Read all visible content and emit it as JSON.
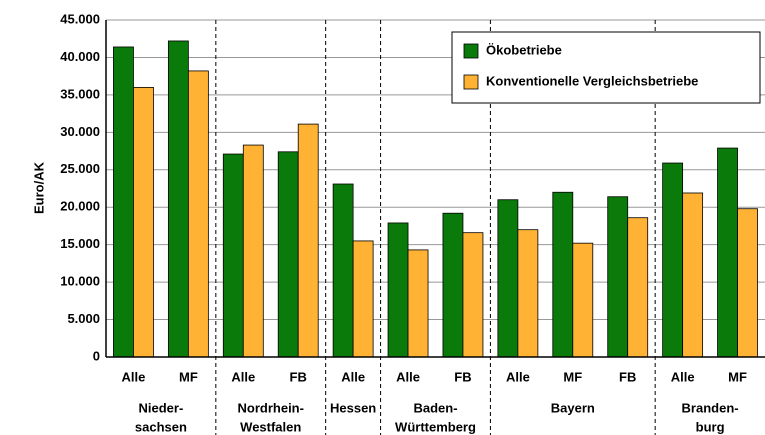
{
  "chart_data": {
    "type": "bar",
    "y_label": "Euro/AK",
    "categories": [
      "Alle",
      "MF",
      "Alle",
      "FB",
      "Alle",
      "Alle",
      "FB",
      "Alle",
      "MF",
      "FB",
      "Alle",
      "MF"
    ],
    "groups": [
      {
        "label": [
          "Nieder-",
          "sachsen"
        ],
        "size": 2
      },
      {
        "label": [
          "Nordrhein-",
          "Westfalen"
        ],
        "size": 2
      },
      {
        "label": [
          "Hessen"
        ],
        "size": 1
      },
      {
        "label": [
          "Baden-",
          "Württemberg"
        ],
        "size": 2
      },
      {
        "label": [
          "Bayern"
        ],
        "size": 3
      },
      {
        "label": [
          "Branden-",
          "burg"
        ],
        "size": 2
      }
    ],
    "series": [
      {
        "name": "Ökobetriebe",
        "color": "#0a7a0a",
        "values": [
          41400,
          42200,
          27100,
          27400,
          23100,
          17900,
          19200,
          21000,
          22000,
          21400,
          25900,
          27900
        ]
      },
      {
        "name": "Konventionelle Vergleichsbetriebe",
        "color": "#ffb233",
        "values": [
          36000,
          38200,
          28300,
          31100,
          15500,
          14300,
          16600,
          17000,
          15200,
          18600,
          21900,
          19800
        ]
      }
    ],
    "ylim": [
      0,
      45000
    ],
    "yticks": [
      0,
      {
        "value": 5000,
        "label": "5.000"
      },
      {
        "value": 10000,
        "label": "10.000"
      },
      {
        "value": 15000,
        "label": "15.000"
      },
      {
        "value": 20000,
        "label": "20.000"
      },
      {
        "value": 25000,
        "label": "25.000"
      },
      {
        "value": 30000,
        "label": "30.000"
      },
      {
        "value": 35000,
        "label": "35.000"
      },
      {
        "value": 40000,
        "label": "40.000"
      },
      {
        "value": 45000,
        "label": "45.000"
      }
    ],
    "grid": true,
    "legend": "top-right"
  }
}
